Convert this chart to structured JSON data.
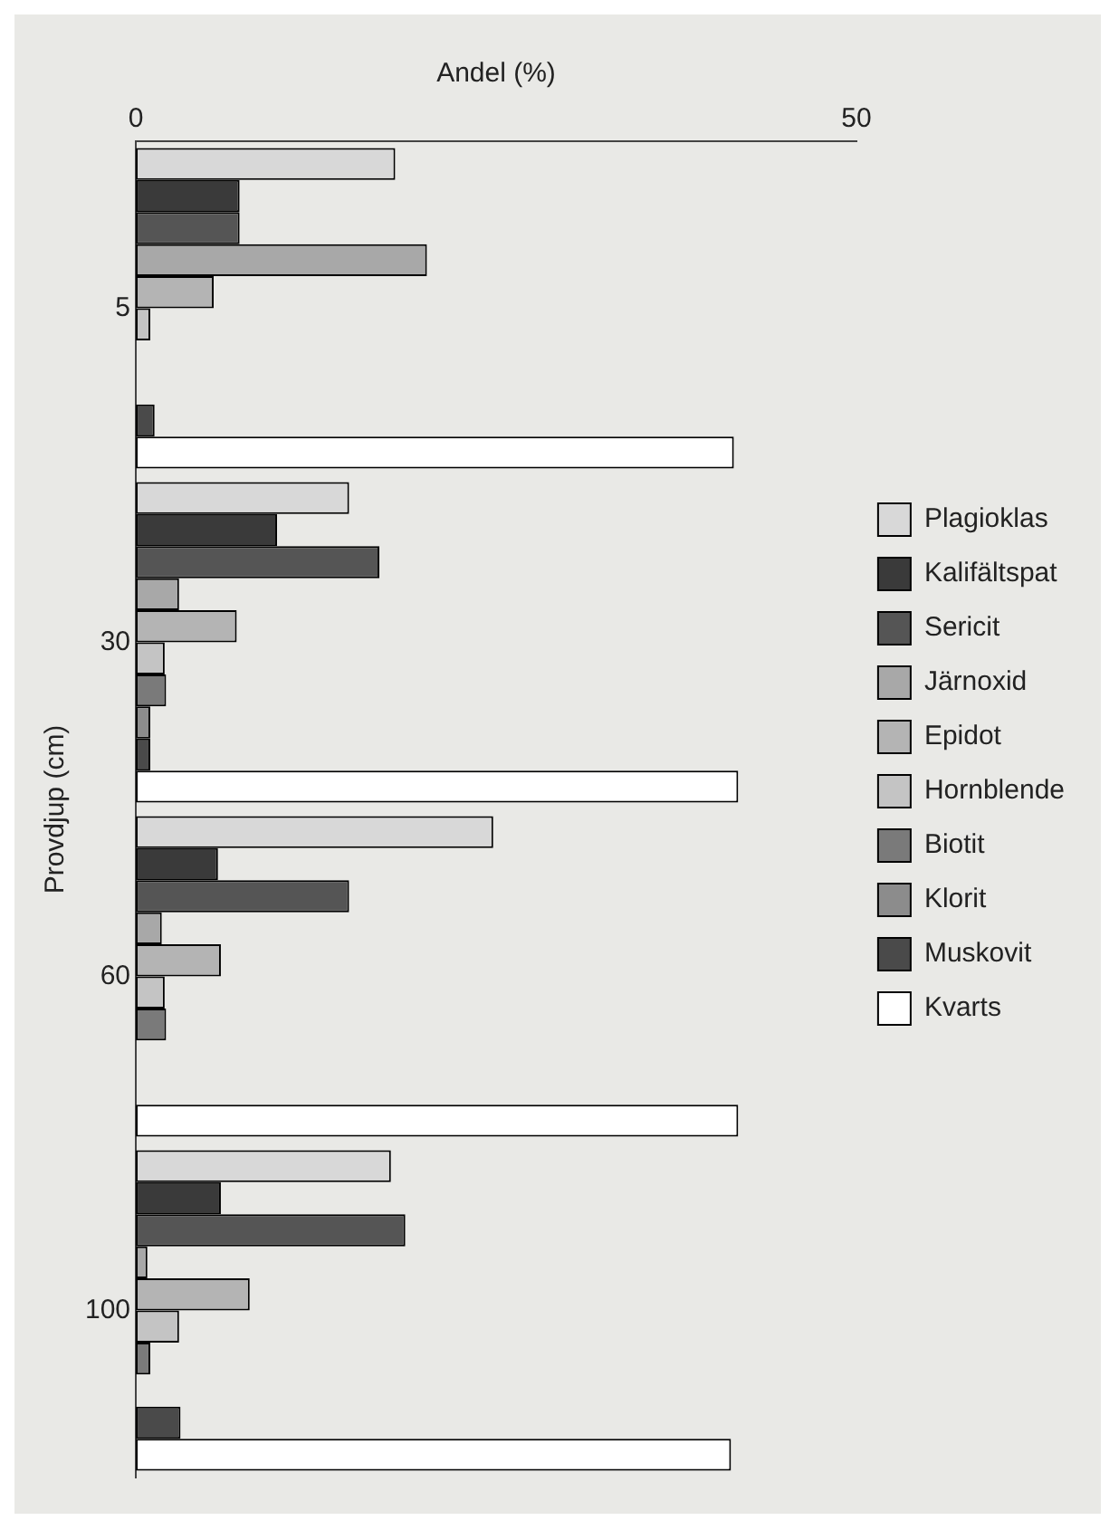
{
  "chart_data": {
    "type": "bar",
    "orientation": "horizontal",
    "xlabel": "Andel (%)",
    "ylabel": "Provdjup (cm)",
    "categories": [
      "5",
      "30",
      "60",
      "100"
    ],
    "series": [
      {
        "name": "Plagioklas",
        "color": "#d8d8d8",
        "values": [
          18,
          14.8,
          24.8,
          17.7
        ]
      },
      {
        "name": "Kalifältspat",
        "color": "#3a3a3a",
        "values": [
          7.2,
          9.8,
          5.7,
          5.9
        ]
      },
      {
        "name": "Sericit",
        "color": "#555555",
        "values": [
          7.2,
          16.9,
          14.8,
          18.7
        ]
      },
      {
        "name": "Järnoxid",
        "color": "#a8a8a8",
        "values": [
          20.2,
          3,
          1.8,
          0.8
        ]
      },
      {
        "name": "Epidot",
        "color": "#b4b4b4",
        "values": [
          5.4,
          7,
          5.9,
          7.9
        ]
      },
      {
        "name": "Hornblende",
        "color": "#c4c4c4",
        "values": [
          1,
          2,
          2,
          3
        ]
      },
      {
        "name": "Biotit",
        "color": "#7a7a7a",
        "values": [
          0,
          2.1,
          2.1,
          1
        ]
      },
      {
        "name": "Klorit",
        "color": "#8c8c8c",
        "values": [
          0,
          1,
          0,
          0
        ]
      },
      {
        "name": "Muskovit",
        "color": "#4a4a4a",
        "values": [
          1.3,
          1,
          0,
          3.1
        ]
      },
      {
        "name": "Kvarts",
        "color": "#ffffff",
        "values": [
          41.5,
          41.8,
          41.8,
          41.3
        ]
      }
    ],
    "xlim": [
      0,
      50
    ],
    "xticks": [
      0,
      50
    ],
    "grid": false,
    "legend": "right"
  }
}
